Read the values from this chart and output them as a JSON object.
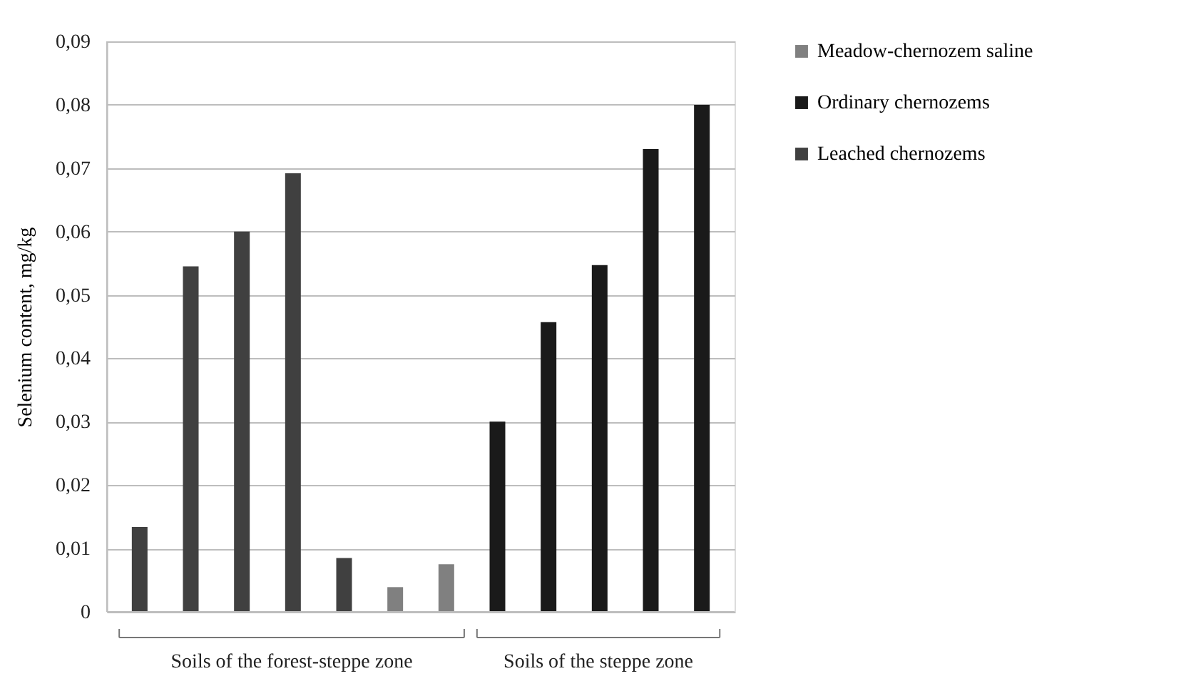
{
  "chart_data": {
    "type": "bar",
    "ylabel": "Selenium content, mg/kg",
    "categories": [
      null,
      null,
      null,
      null,
      null,
      null,
      null,
      null,
      null,
      null,
      null,
      null
    ],
    "series": [
      {
        "name": "Meadow-chernozem saline",
        "color": "#808080",
        "values": [
          null,
          null,
          null,
          null,
          null,
          0.0039,
          0.0075,
          null,
          null,
          null,
          null,
          null
        ]
      },
      {
        "name": "Ordinary chernozems",
        "color": "#1a1a1a",
        "values": [
          null,
          null,
          null,
          null,
          null,
          null,
          null,
          0.03,
          0.0457,
          0.0547,
          0.073,
          0.08
        ]
      },
      {
        "name": "Leached chernozems",
        "color": "#404040",
        "values": [
          0.0134,
          0.0545,
          0.06,
          0.0692,
          0.0085,
          null,
          null,
          null,
          null,
          null,
          null,
          null
        ]
      }
    ],
    "ylim": [
      0,
      0.09
    ],
    "yticks": [
      0,
      {
        "value": 0.01,
        "label": "0,01"
      },
      {
        "value": 0.02,
        "label": "0,02"
      },
      {
        "value": 0.03,
        "label": "0,03"
      },
      {
        "value": 0.04,
        "label": "0,04"
      },
      {
        "value": 0.05,
        "label": "0,05"
      },
      {
        "value": 0.06,
        "label": "0,06"
      },
      {
        "value": 0.07,
        "label": "0,07"
      },
      {
        "value": 0.08,
        "label": "0,08"
      },
      {
        "value": 0.09,
        "label": "0,09"
      }
    ],
    "annotations": [
      "Soils of the forest-steppe zone",
      "Soils of the steppe zone"
    ],
    "grid": "y",
    "legend": "right",
    "tick_labels": "y"
  }
}
